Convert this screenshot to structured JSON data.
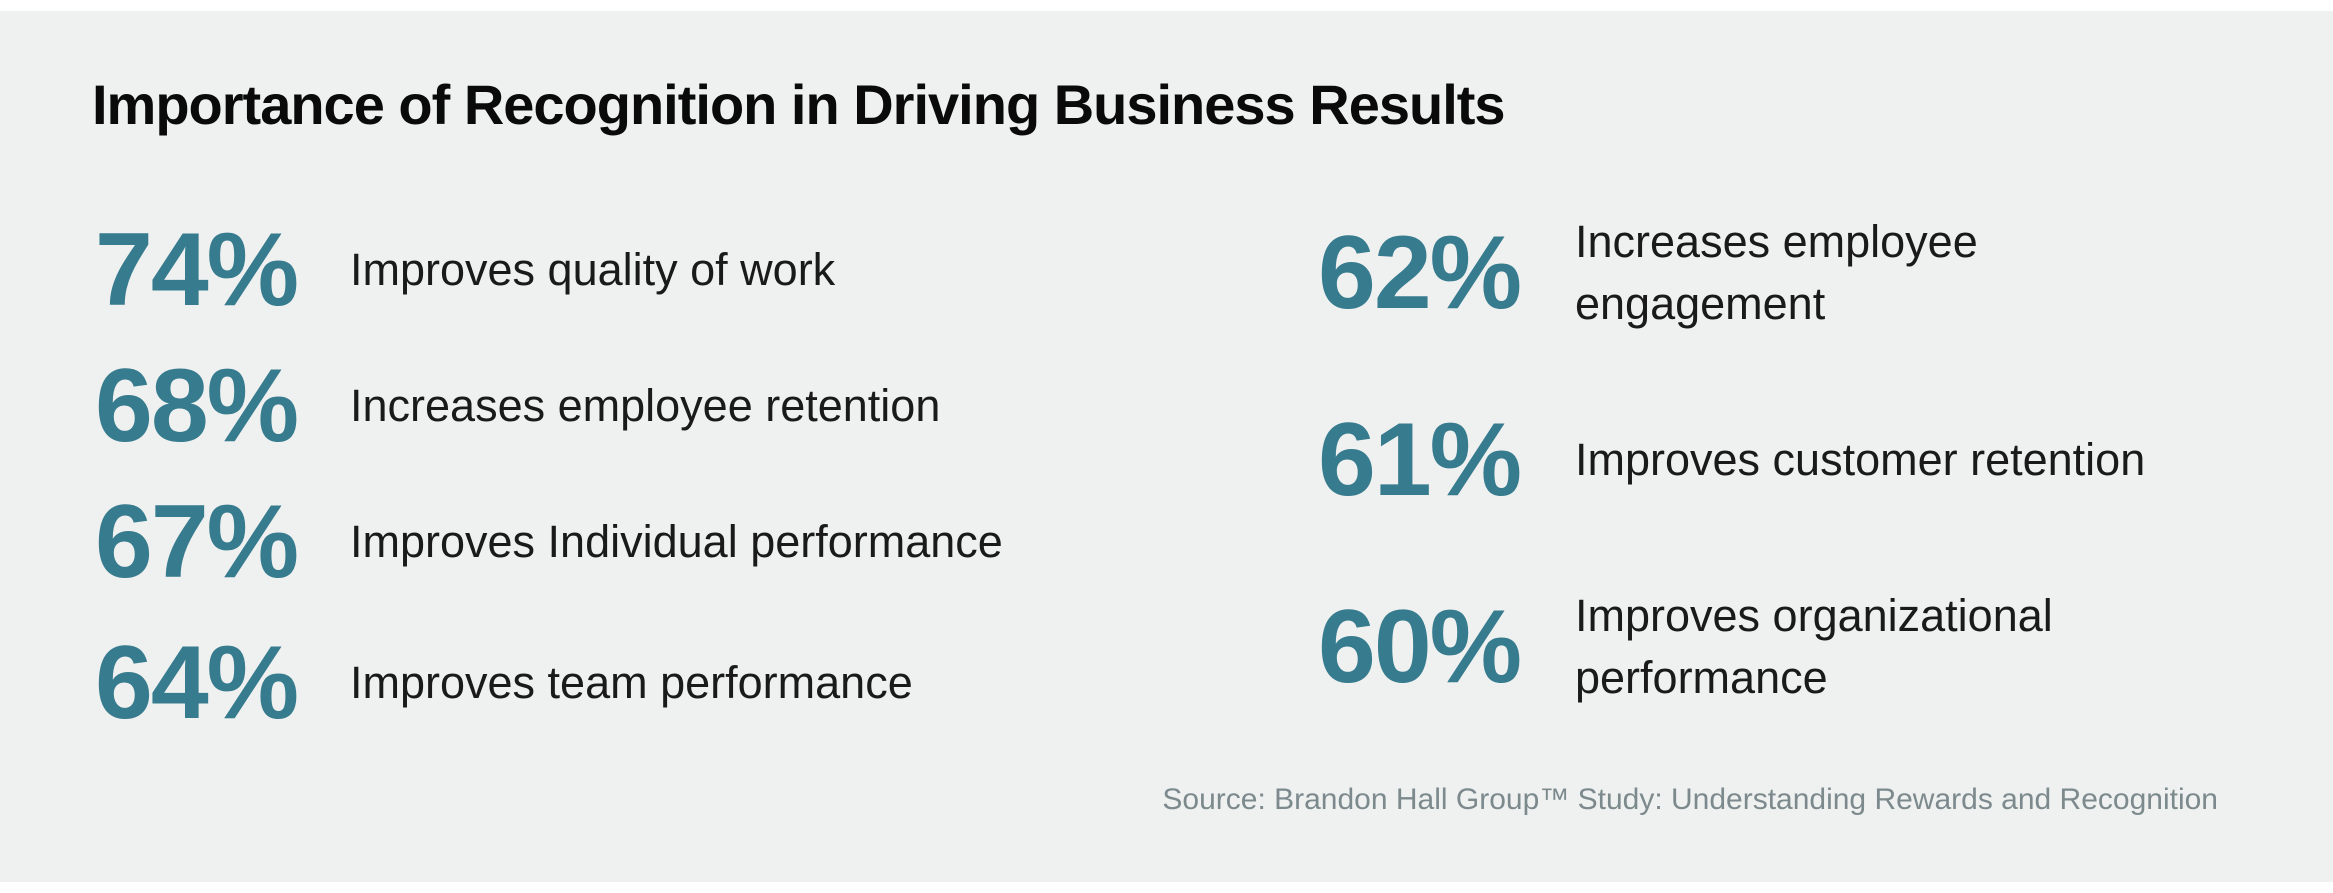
{
  "title": "Importance of Recognition in Driving Business Results",
  "source_note": "Source: Brandon Hall Group™ Study: Understanding Rewards and Recognition",
  "colors": {
    "page_background": "#ffffff",
    "panel_background": "#eff1f0",
    "accent_teal": "#377b8e",
    "title_text": "#0a0a0a",
    "label_text": "#1a1a1a",
    "source_text": "#7c898d"
  },
  "stats": {
    "left": [
      {
        "value": "74%",
        "lines": [
          "Improves quality of work"
        ]
      },
      {
        "value": "68%",
        "lines": [
          "Increases employee retention"
        ]
      },
      {
        "value": "67%",
        "lines": [
          "Improves Individual performance"
        ]
      },
      {
        "value": "64%",
        "lines": [
          "Improves team performance"
        ]
      }
    ],
    "right": [
      {
        "value": "62%",
        "lines": [
          "Increases employee",
          "engagement"
        ]
      },
      {
        "value": "61%",
        "lines": [
          "Improves customer retention"
        ]
      },
      {
        "value": "60%",
        "lines": [
          "Improves organizational",
          "performance"
        ]
      }
    ]
  },
  "chart_data": {
    "type": "table",
    "title": "Importance of Recognition in Driving Business Results",
    "unit": "percent",
    "categories": [
      "Improves quality of work",
      "Increases employee retention",
      "Improves Individual performance",
      "Improves team performance",
      "Increases employee engagement",
      "Improves customer retention",
      "Improves organizational performance"
    ],
    "values": [
      74,
      68,
      67,
      64,
      62,
      61,
      60
    ],
    "layout": {
      "columns": 2,
      "column_split": [
        4,
        3
      ],
      "legend": "none",
      "grid": false
    },
    "source": "Source: Brandon Hall Group™ Study: Understanding Rewards and Recognition"
  }
}
